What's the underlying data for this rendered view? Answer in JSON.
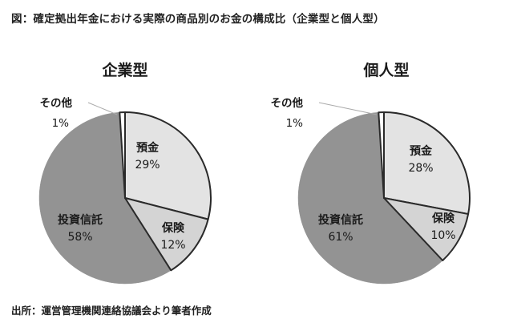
{
  "header": {
    "title": "図：確定拠出年金における実際の商品別のお金の構成比（企業型と個人型）"
  },
  "footer": {
    "source": "出所：運営管理機関連絡協議会より筆者作成"
  },
  "colors": {
    "deposit": "#e3e3e3",
    "insurance": "#d4d4d4",
    "trust": "#939393",
    "other": "#ffffff",
    "stroke": "#2a2a2a"
  },
  "chart_data": [
    {
      "type": "pie",
      "title": "企業型",
      "slices": [
        {
          "label": "預金",
          "value": 29,
          "value_label": "29%"
        },
        {
          "label": "保険",
          "value": 12,
          "value_label": "12%"
        },
        {
          "label": "投資信託",
          "value": 58,
          "value_label": "58%"
        },
        {
          "label": "その他",
          "value": 1,
          "value_label": "1%"
        }
      ]
    },
    {
      "type": "pie",
      "title": "個人型",
      "slices": [
        {
          "label": "預金",
          "value": 28,
          "value_label": "28%"
        },
        {
          "label": "保険",
          "value": 10,
          "value_label": "10%"
        },
        {
          "label": "投資信託",
          "value": 61,
          "value_label": "61%"
        },
        {
          "label": "その他",
          "value": 1,
          "value_label": "1%"
        }
      ]
    }
  ]
}
